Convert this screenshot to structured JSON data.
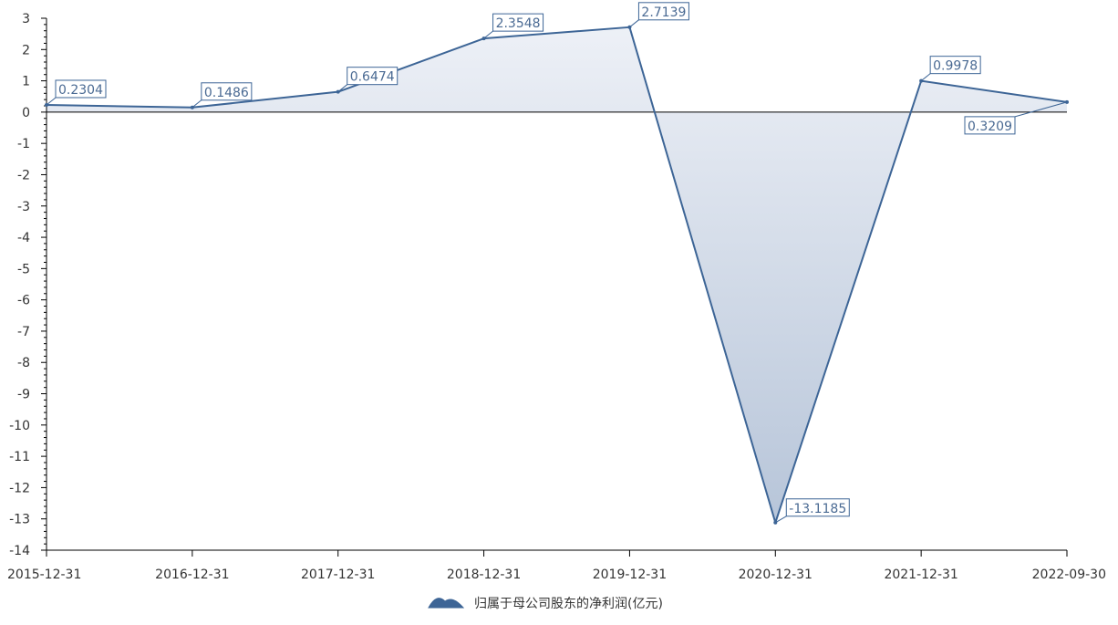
{
  "chart_data": {
    "type": "area",
    "title": "",
    "xlabel": "",
    "ylabel": "",
    "categories": [
      "2015-12-31",
      "2016-12-31",
      "2017-12-31",
      "2018-12-31",
      "2019-12-31",
      "2020-12-31",
      "2021-12-31",
      "2022-09-30"
    ],
    "series": [
      {
        "name": "归属于母公司股东的净利润(亿元)",
        "values": [
          0.2304,
          0.1486,
          0.6474,
          2.3548,
          2.7139,
          -13.1185,
          0.9978,
          0.3209
        ],
        "labels": [
          "0.2304",
          "0.1486",
          "0.6474",
          "2.3548",
          "2.7139",
          "-13.1185",
          "0.9978",
          "0.3209"
        ]
      }
    ],
    "ylim": [
      -14,
      3
    ],
    "yticks": [
      "3",
      "2",
      "1",
      "0",
      "-1",
      "-2",
      "-3",
      "-4",
      "-5",
      "-6",
      "-7",
      "-8",
      "-9",
      "-10",
      "-11",
      "-12",
      "-13",
      "-14"
    ],
    "grid": false,
    "legend_position": "bottom-center",
    "colors": {
      "line": "#3d6596",
      "area_top": "#eef1f7",
      "area_bottom": "#b7c5d9",
      "axis": "#000000",
      "label_border": "#3d6596",
      "label_text": "#4a6a93"
    }
  }
}
